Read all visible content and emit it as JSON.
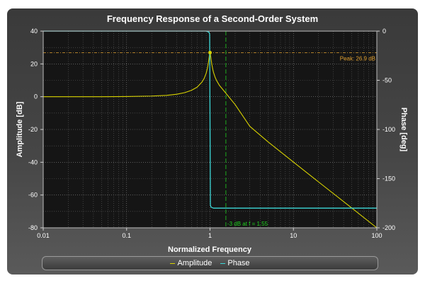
{
  "chart_data": {
    "type": "line",
    "title": "Frequency Response of a Second-Order System",
    "xlabel": "Normalized Frequency",
    "ylabel": "Amplitude [dB]",
    "y2label": "Phase [deg]",
    "xscale": "log",
    "xlim": [
      0.01,
      100
    ],
    "ylim": [
      -80,
      40
    ],
    "y2lim": [
      -200,
      0
    ],
    "x_ticks": [
      "0.01",
      "0.1",
      "1",
      "10",
      "100"
    ],
    "y_ticks": [
      "40",
      "20",
      "0",
      "-20",
      "-40",
      "-60",
      "-80"
    ],
    "y2_ticks": [
      "0",
      "-50",
      "-100",
      "-150",
      "-200"
    ],
    "grid": true,
    "legend_position": "bottom",
    "series": [
      {
        "name": "Amplitude",
        "color": "#d8d200",
        "axis": "left",
        "x": [
          0.01,
          0.02,
          0.05,
          0.1,
          0.2,
          0.3,
          0.4,
          0.5,
          0.6,
          0.7,
          0.8,
          0.85,
          0.9,
          0.93,
          0.95,
          0.97,
          0.98,
          0.99,
          1.0,
          1.01,
          1.02,
          1.03,
          1.05,
          1.08,
          1.1,
          1.15,
          1.2,
          1.3,
          1.5,
          2,
          3,
          5,
          10,
          20,
          50,
          100
        ],
        "y": [
          0.0,
          0.0,
          0.0,
          0.1,
          0.4,
          0.8,
          1.5,
          2.5,
          3.9,
          5.8,
          8.9,
          11.1,
          14.4,
          17.3,
          19.8,
          23.0,
          24.7,
          26.2,
          26.9,
          26.1,
          24.5,
          22.8,
          19.8,
          16.6,
          14.9,
          11.9,
          9.8,
          6.8,
          3.0,
          -4.8,
          -18.1,
          -27.7,
          -39.9,
          -52.0,
          -67.9,
          -80.0
        ]
      },
      {
        "name": "Phase",
        "color": "#3cd8d8",
        "axis": "right",
        "x": [
          0.01,
          0.5,
          0.9,
          0.97,
          0.99,
          1.0,
          1.01,
          1.03,
          1.1,
          2,
          10,
          100
        ],
        "y": [
          0,
          0,
          0,
          -1,
          -3,
          -90,
          -177,
          -179,
          -180,
          -180,
          -180,
          -180
        ]
      }
    ],
    "annotations": [
      {
        "label": "Peak: 26.9 dB",
        "type": "hline",
        "y": 26.9,
        "color": "#e0a030"
      },
      {
        "label": "-3 dB at f = 1.55",
        "type": "vline",
        "x": 1.55,
        "color": "#20d020"
      }
    ],
    "peak_marker": {
      "x": 1.0,
      "y": 26.9
    }
  }
}
